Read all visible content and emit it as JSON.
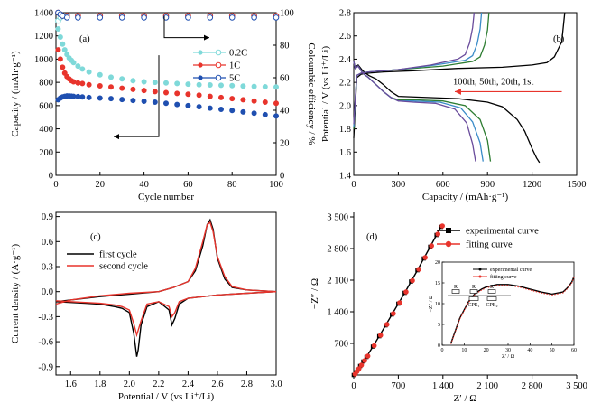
{
  "chart_data": [
    {
      "id": "a",
      "panel_label": "(a)",
      "type": "scatter",
      "xlabel": "Cycle number",
      "ylabel": "Capacity / (mAh·g⁻¹)",
      "ylabel_right": "Coloumbic efficiency / %",
      "xlim": [
        0,
        100
      ],
      "ylim": [
        0,
        1400
      ],
      "ylim_right": [
        0,
        100
      ],
      "xticks": [
        0,
        20,
        40,
        60,
        80,
        100
      ],
      "yticks": [
        0,
        200,
        400,
        600,
        800,
        1000,
        1200,
        1400
      ],
      "yticks_right": [
        0,
        20,
        40,
        60,
        80,
        100
      ],
      "legend_position": "right",
      "colors": {
        "0.2C": "#7fd9d9",
        "1C": "#e8342c",
        "5C": "#1f4fb0"
      },
      "series": [
        {
          "name": "0.2C",
          "axis": "left",
          "x": [
            1,
            2,
            3,
            4,
            5,
            6,
            7,
            8,
            10,
            12,
            15,
            20,
            25,
            30,
            35,
            40,
            45,
            50,
            55,
            60,
            65,
            70,
            75,
            80,
            85,
            90,
            95,
            100
          ],
          "values": [
            1260,
            1190,
            1130,
            1080,
            1040,
            1010,
            990,
            970,
            940,
            915,
            890,
            865,
            845,
            830,
            815,
            805,
            800,
            795,
            790,
            785,
            780,
            778,
            775,
            772,
            768,
            765,
            762,
            760
          ]
        },
        {
          "name": "0.2C",
          "axis": "right",
          "x": [
            1,
            2,
            3,
            5,
            10,
            20,
            30,
            40,
            50,
            60,
            70,
            80,
            90,
            100
          ],
          "values": [
            95,
            97,
            98,
            98,
            98,
            98,
            98,
            98,
            98,
            98,
            98,
            98,
            98,
            98
          ]
        },
        {
          "name": "1C",
          "axis": "left",
          "x": [
            1,
            2,
            3,
            4,
            5,
            6,
            7,
            8,
            10,
            12,
            15,
            20,
            25,
            30,
            35,
            40,
            45,
            50,
            55,
            60,
            65,
            70,
            75,
            80,
            85,
            90,
            95,
            100
          ],
          "values": [
            1080,
            1000,
            930,
            880,
            850,
            830,
            815,
            805,
            795,
            790,
            780,
            770,
            760,
            750,
            740,
            730,
            720,
            712,
            705,
            698,
            690,
            680,
            670,
            660,
            650,
            640,
            630,
            620
          ]
        },
        {
          "name": "1C",
          "axis": "right",
          "x": [
            1,
            2,
            3,
            5,
            10,
            20,
            30,
            40,
            50,
            60,
            70,
            80,
            90,
            100
          ],
          "values": [
            100,
            99,
            98,
            98,
            98,
            98,
            98,
            98,
            98,
            98,
            98,
            98,
            98,
            98
          ]
        },
        {
          "name": "5C",
          "axis": "left",
          "x": [
            1,
            2,
            3,
            4,
            5,
            6,
            7,
            8,
            10,
            12,
            15,
            20,
            25,
            30,
            35,
            40,
            45,
            50,
            55,
            60,
            65,
            70,
            75,
            80,
            85,
            90,
            95,
            100
          ],
          "values": [
            650,
            665,
            675,
            680,
            683,
            683,
            682,
            680,
            678,
            675,
            670,
            665,
            660,
            652,
            645,
            638,
            630,
            620,
            610,
            600,
            590,
            578,
            568,
            558,
            545,
            535,
            522,
            510
          ]
        },
        {
          "name": "5C",
          "axis": "right",
          "x": [
            1,
            2,
            3,
            5,
            10,
            20,
            30,
            40,
            50,
            60,
            70,
            80,
            90,
            100
          ],
          "values": [
            100,
            99,
            98,
            97,
            97,
            97,
            97,
            97,
            97,
            97,
            97,
            97,
            97,
            97
          ]
        }
      ]
    },
    {
      "id": "b",
      "panel_label": "(b)",
      "type": "line",
      "xlabel": "Capacity / (mAh·g⁻¹)",
      "ylabel": "Potential / V (vs Li⁺/Li)",
      "xlim": [
        0,
        1500
      ],
      "ylim": [
        1.4,
        2.8
      ],
      "xticks": [
        0,
        300,
        600,
        900,
        1200,
        1500
      ],
      "yticks": [
        1.4,
        1.6,
        1.8,
        2.0,
        2.2,
        2.4,
        2.6,
        2.8
      ],
      "annotation": "100th, 50th, 20th, 1st",
      "series": [
        {
          "cycle": "1st",
          "color": "#000000",
          "discharge": {
            "x": [
              0,
              10,
              30,
              60,
              100,
              150,
              200,
              250,
              300,
              500,
              700,
              900,
              1000,
              1100,
              1150,
              1200,
              1230,
              1250
            ],
            "y": [
              2.38,
              2.33,
              2.35,
              2.3,
              2.26,
              2.23,
              2.18,
              2.12,
              2.08,
              2.07,
              2.06,
              2.03,
              1.99,
              1.88,
              1.78,
              1.63,
              1.55,
              1.51
            ]
          },
          "charge": {
            "x": [
              0,
              20,
              50,
              100,
              200,
              400,
              700,
              1000,
              1200,
              1300,
              1350,
              1400,
              1420
            ],
            "y": [
              1.72,
              2.24,
              2.27,
              2.28,
              2.29,
              2.3,
              2.32,
              2.33,
              2.35,
              2.37,
              2.42,
              2.55,
              2.8
            ]
          }
        },
        {
          "cycle": "20th",
          "color": "#2e7d32",
          "discharge": {
            "x": [
              0,
              10,
              30,
              60,
              100,
              150,
              200,
              250,
              300,
              400,
              600,
              750,
              850,
              900,
              920
            ],
            "y": [
              2.38,
              2.32,
              2.34,
              2.28,
              2.24,
              2.18,
              2.12,
              2.07,
              2.05,
              2.05,
              2.04,
              2.0,
              1.88,
              1.7,
              1.52
            ]
          },
          "charge": {
            "x": [
              0,
              20,
              50,
              100,
              300,
              600,
              800,
              850,
              880,
              900,
              910
            ],
            "y": [
              1.8,
              2.26,
              2.28,
              2.29,
              2.31,
              2.34,
              2.38,
              2.42,
              2.52,
              2.65,
              2.8
            ]
          }
        },
        {
          "cycle": "50th",
          "color": "#3a8bc8",
          "discharge": {
            "x": [
              0,
              10,
              30,
              60,
              100,
              150,
              200,
              250,
              300,
              400,
              580,
              720,
              800,
              850,
              870
            ],
            "y": [
              2.38,
              2.32,
              2.34,
              2.28,
              2.24,
              2.18,
              2.12,
              2.07,
              2.04,
              2.04,
              2.03,
              1.98,
              1.86,
              1.68,
              1.52
            ]
          },
          "charge": {
            "x": [
              0,
              20,
              50,
              100,
              300,
              550,
              750,
              800,
              830,
              850,
              860
            ],
            "y": [
              1.82,
              2.26,
              2.28,
              2.29,
              2.31,
              2.35,
              2.39,
              2.43,
              2.53,
              2.66,
              2.8
            ]
          }
        },
        {
          "cycle": "100th",
          "color": "#6a4c9c",
          "discharge": {
            "x": [
              0,
              10,
              30,
              60,
              100,
              150,
              200,
              250,
              300,
              400,
              550,
              680,
              760,
              800,
              820
            ],
            "y": [
              2.38,
              2.32,
              2.34,
              2.28,
              2.24,
              2.18,
              2.12,
              2.07,
              2.04,
              2.03,
              2.02,
              1.97,
              1.85,
              1.67,
              1.52
            ]
          },
          "charge": {
            "x": [
              0,
              20,
              50,
              100,
              300,
              520,
              700,
              750,
              780,
              800,
              810
            ],
            "y": [
              1.84,
              2.26,
              2.28,
              2.29,
              2.31,
              2.35,
              2.4,
              2.44,
              2.54,
              2.67,
              2.8
            ]
          }
        }
      ]
    },
    {
      "id": "c",
      "panel_label": "(c)",
      "type": "line",
      "xlabel": "Potential / V (vs Li⁺/Li)",
      "ylabel": "Current density / (A·g⁻¹)",
      "xlim": [
        1.5,
        3.0
      ],
      "ylim": [
        -1.0,
        0.95
      ],
      "xticks": [
        1.6,
        1.8,
        2.0,
        2.2,
        2.4,
        2.6,
        2.8,
        3.0
      ],
      "yticks": [
        -0.9,
        -0.6,
        -0.3,
        0.0,
        0.3,
        0.6,
        0.9
      ],
      "legend_position": "upper-left",
      "series": [
        {
          "name": "first cycle",
          "color": "#000000",
          "forward": {
            "x": [
              1.5,
              1.6,
              1.8,
              2.0,
              2.2,
              2.3,
              2.4,
              2.45,
              2.5,
              2.53,
              2.55,
              2.57,
              2.6,
              2.65,
              2.7,
              2.8,
              3.0
            ],
            "y": [
              -0.12,
              -0.1,
              -0.06,
              -0.03,
              0.0,
              0.05,
              0.12,
              0.25,
              0.55,
              0.8,
              0.86,
              0.75,
              0.4,
              0.15,
              0.05,
              0.02,
              0.0
            ]
          },
          "reverse": {
            "x": [
              3.0,
              2.8,
              2.6,
              2.4,
              2.34,
              2.31,
              2.29,
              2.27,
              2.2,
              2.12,
              2.08,
              2.06,
              2.05,
              2.03,
              2.0,
              1.95,
              1.9,
              1.8,
              1.7,
              1.6,
              1.5
            ],
            "y": [
              0.0,
              -0.02,
              -0.04,
              -0.08,
              -0.15,
              -0.32,
              -0.4,
              -0.22,
              -0.12,
              -0.18,
              -0.4,
              -0.7,
              -0.78,
              -0.5,
              -0.25,
              -0.2,
              -0.18,
              -0.15,
              -0.14,
              -0.13,
              -0.12
            ]
          }
        },
        {
          "name": "second cycle",
          "color": "#e8342c",
          "forward": {
            "x": [
              1.5,
              1.6,
              1.8,
              2.0,
              2.2,
              2.3,
              2.4,
              2.45,
              2.5,
              2.53,
              2.55,
              2.57,
              2.6,
              2.65,
              2.7,
              2.8,
              3.0
            ],
            "y": [
              -0.15,
              -0.1,
              -0.05,
              -0.02,
              0.0,
              0.05,
              0.12,
              0.28,
              0.6,
              0.8,
              0.83,
              0.72,
              0.42,
              0.18,
              0.06,
              0.02,
              0.0
            ]
          },
          "reverse": {
            "x": [
              3.0,
              2.8,
              2.6,
              2.4,
              2.34,
              2.31,
              2.29,
              2.27,
              2.2,
              2.12,
              2.08,
              2.05,
              2.03,
              2.0,
              1.95,
              1.9,
              1.8,
              1.7,
              1.6,
              1.5
            ],
            "y": [
              0.0,
              -0.02,
              -0.04,
              -0.08,
              -0.12,
              -0.25,
              -0.3,
              -0.18,
              -0.12,
              -0.15,
              -0.35,
              -0.52,
              -0.38,
              -0.22,
              -0.18,
              -0.16,
              -0.14,
              -0.13,
              -0.12,
              -0.11
            ]
          }
        }
      ]
    },
    {
      "id": "d",
      "panel_label": "(d)",
      "type": "line",
      "xlabel": "Z′ / Ω",
      "ylabel": "−Z″ / Ω",
      "xlim": [
        0,
        3500
      ],
      "ylim": [
        0,
        3600
      ],
      "xticks_labels": [
        "0",
        "700",
        "1 400",
        "2 100",
        "2 800",
        "3 500"
      ],
      "xticks": [
        0,
        700,
        1400,
        2100,
        2800,
        3500
      ],
      "yticks_labels": [
        "700",
        "1 400",
        "2 100",
        "2 800",
        "3 500"
      ],
      "yticks": [
        700,
        1400,
        2100,
        2800,
        3500
      ],
      "legend_position": "upper-right",
      "series": [
        {
          "name": "experimental curve",
          "color": "#000000",
          "marker": "square",
          "x": [
            0,
            30,
            60,
            100,
            150,
            200,
            300,
            400,
            500,
            600,
            700,
            800,
            900,
            1000,
            1100,
            1200,
            1300,
            1370
          ],
          "values": [
            0,
            60,
            120,
            200,
            300,
            400,
            630,
            860,
            1100,
            1340,
            1580,
            1820,
            2070,
            2320,
            2580,
            2840,
            3100,
            3280
          ]
        },
        {
          "name": "fitting curve",
          "color": "#e8342c",
          "marker": "circle",
          "x": [
            0,
            30,
            60,
            100,
            150,
            200,
            300,
            400,
            500,
            600,
            700,
            800,
            900,
            1000,
            1100,
            1200,
            1300,
            1370
          ],
          "values": [
            0,
            60,
            120,
            200,
            300,
            400,
            630,
            860,
            1100,
            1340,
            1580,
            1820,
            2070,
            2320,
            2580,
            2840,
            3100,
            3280
          ]
        }
      ],
      "inset": {
        "xlabel": "Z′ / Ω",
        "ylabel": "−Z″ / Ω",
        "xlim": [
          0,
          60
        ],
        "ylim": [
          0,
          20
        ],
        "xticks": [
          0,
          10,
          20,
          30,
          40,
          50,
          60
        ],
        "yticks": [
          0,
          5,
          10,
          15,
          20
        ],
        "legend": [
          "experimental curve",
          "fitting curve"
        ],
        "circuit_labels": [
          "R",
          "R",
          "R",
          "CPE₁",
          "CPE₂"
        ],
        "x": [
          4,
          6,
          8,
          10,
          12,
          15,
          18,
          20,
          25,
          30,
          35,
          40,
          45,
          50,
          55,
          57,
          59,
          60
        ],
        "values": [
          0.5,
          3.5,
          6.5,
          8.5,
          10.5,
          12.5,
          13.5,
          14.0,
          14.6,
          14.6,
          14.2,
          13.5,
          12.8,
          12.3,
          12.8,
          13.8,
          15.2,
          16.5
        ]
      }
    }
  ]
}
